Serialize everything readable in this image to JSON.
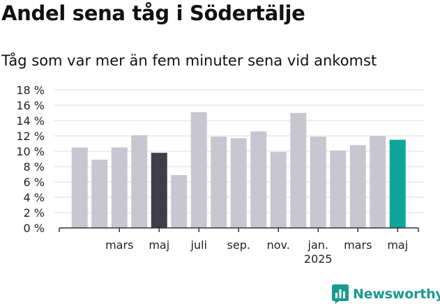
{
  "header": {
    "title": "Andel sena tåg i Södertälje",
    "subtitle": "Tåg som var mer än fem minuter sena vid ankomst"
  },
  "branding": {
    "name": "Newsworthy",
    "logo_icon": "newsworthy-bar-chart-icon",
    "color": "#1a9a8f"
  },
  "chart_data": {
    "type": "bar",
    "title": "Andel sena tåg i Södertälje",
    "subtitle": "Tåg som var mer än fem minuter sena vid ankomst",
    "xlabel": "",
    "ylabel": "",
    "ylim": [
      0,
      18
    ],
    "y_ticks": [
      0,
      2,
      4,
      6,
      8,
      10,
      12,
      14,
      16,
      18
    ],
    "y_tick_labels": [
      "0 %",
      "2 %",
      "4 %",
      "6 %",
      "8 %",
      "10 %",
      "12 %",
      "14 %",
      "16 %",
      "18 %"
    ],
    "categories": [
      "2024-01",
      "2024-02",
      "2024-03",
      "2024-04",
      "2024-05",
      "2024-06",
      "2024-07",
      "2024-08",
      "2024-09",
      "2024-10",
      "2024-11",
      "2024-12",
      "2025-01",
      "2025-02",
      "2025-03",
      "2025-04",
      "2025-05",
      "2025-06"
    ],
    "values": [
      10.5,
      8.9,
      10.5,
      12.1,
      9.8,
      6.9,
      15.1,
      11.9,
      11.7,
      12.6,
      9.9,
      15.0,
      11.9,
      10.1,
      10.8,
      12.0,
      11.5,
      null
    ],
    "x_tick_labels": [
      {
        "category": "2024-03",
        "label": "mars"
      },
      {
        "category": "2024-05",
        "label": "maj"
      },
      {
        "category": "2024-07",
        "label": "juli"
      },
      {
        "category": "2024-09",
        "label": "sep."
      },
      {
        "category": "2024-11",
        "label": "nov."
      },
      {
        "category": "2025-01",
        "label": "jan.",
        "sublabel": "2025"
      },
      {
        "category": "2025-03",
        "label": "mars"
      },
      {
        "category": "2025-05",
        "label": "maj"
      }
    ],
    "highlight": [
      {
        "category": "2024-05",
        "color": "#403d4b"
      },
      {
        "category": "2025-05",
        "color": "#0da69a"
      }
    ],
    "bar_color": "#c8c6d1",
    "grid": true,
    "legend": "none"
  }
}
